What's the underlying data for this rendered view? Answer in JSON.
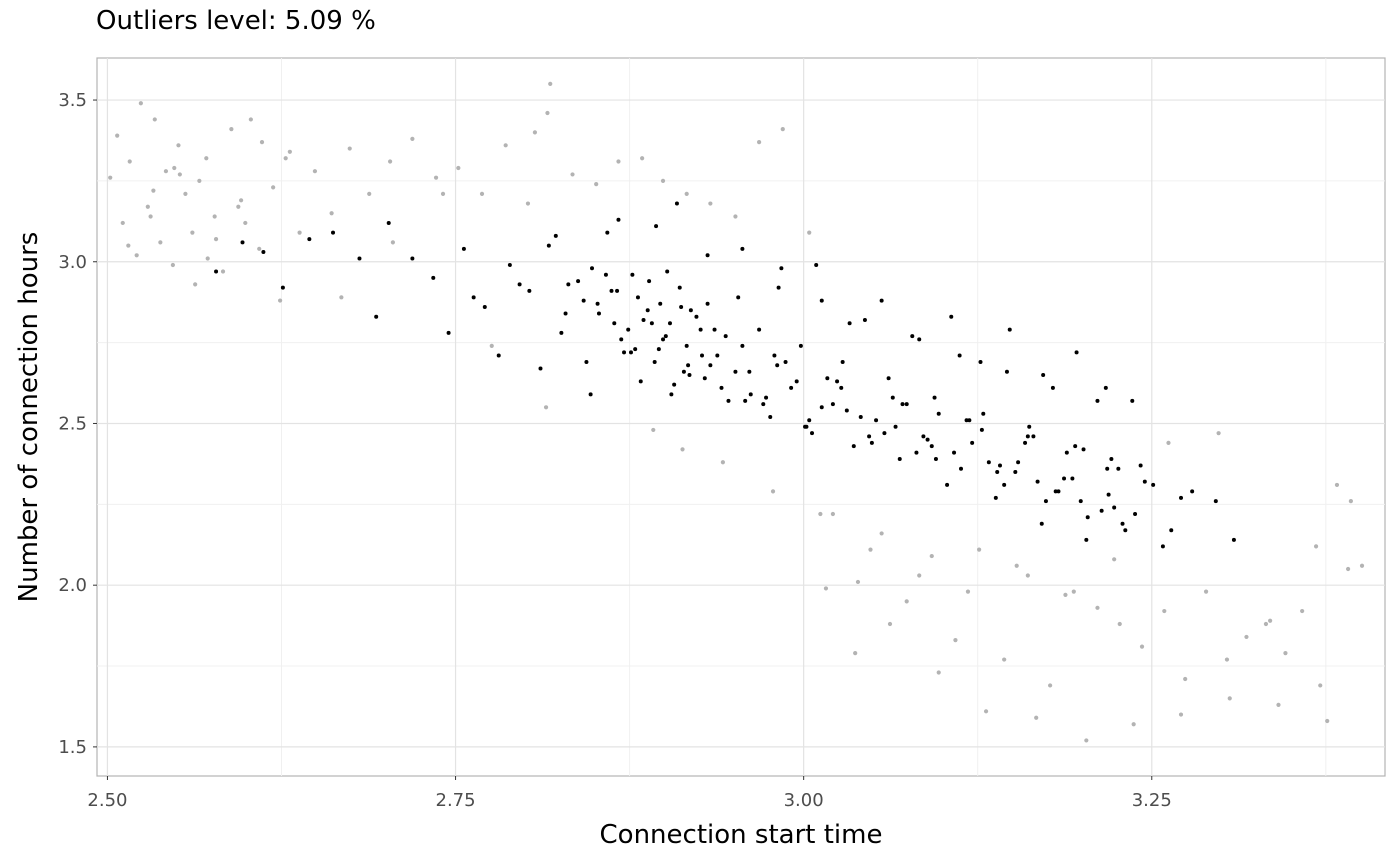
{
  "chart_data": {
    "type": "scatter",
    "title": "Outliers level: 5.09 %",
    "xlabel": "Connection start time",
    "ylabel": "Number of connection hours",
    "xlim": [
      2.4925,
      3.4175
    ],
    "ylim": [
      1.41,
      3.63
    ],
    "xticks": [
      2.5,
      2.75,
      3.0,
      3.25
    ],
    "xtick_labels": [
      "2.50",
      "2.75",
      "3.00",
      "3.25"
    ],
    "yticks": [
      1.5,
      2.0,
      2.5,
      3.0,
      3.5
    ],
    "ytick_labels": [
      "1.5",
      "2.0",
      "2.5",
      "3.0",
      "3.5"
    ],
    "grid": true,
    "legend": "none",
    "series": [
      {
        "color": "#000000",
        "x": [
          2.578,
          2.612,
          2.645,
          2.681,
          2.702,
          2.734,
          2.756,
          2.771,
          2.789,
          2.803,
          2.817,
          2.826,
          2.838,
          2.844,
          2.852,
          2.859,
          2.864,
          2.871,
          2.877,
          2.883,
          2.888,
          2.894,
          2.899,
          2.905,
          2.911,
          2.917,
          2.923,
          2.931,
          2.938,
          2.946,
          2.953,
          2.961,
          2.968,
          2.976,
          2.984,
          2.991,
          2.998,
          3.006,
          3.013,
          3.021,
          3.028,
          3.036,
          3.044,
          3.052,
          3.061,
          3.069,
          3.078,
          3.086,
          3.094,
          3.103,
          3.112,
          3.121,
          3.129,
          3.138,
          3.146,
          3.154,
          3.162,
          3.171,
          3.179,
          3.187,
          3.195,
          3.203,
          3.211,
          3.219,
          3.226,
          3.238,
          3.251,
          3.264,
          3.279,
          3.296,
          3.309,
          2.597,
          2.626,
          2.662,
          2.693,
          2.719,
          2.745,
          2.763,
          2.781,
          2.796,
          2.811,
          2.829,
          2.847,
          2.862,
          2.879,
          2.891,
          2.902,
          2.914,
          2.926,
          2.941,
          2.956,
          2.971,
          2.987,
          3.002,
          3.017,
          3.031,
          3.047,
          3.064,
          3.081,
          3.097,
          3.113,
          3.128,
          3.144,
          3.159,
          3.174,
          3.189,
          3.204,
          3.218,
          3.231,
          3.245,
          3.258,
          3.271,
          2.885,
          2.901,
          2.912,
          2.874,
          2.866,
          2.896,
          2.919,
          2.933,
          2.858,
          2.842,
          2.907,
          2.927,
          2.951,
          2.973,
          2.995,
          3.013,
          3.041,
          3.066,
          3.089,
          3.108,
          3.133,
          3.152,
          3.168,
          3.183,
          3.199,
          3.214,
          3.229,
          2.853,
          2.869,
          2.881,
          2.893,
          2.904,
          2.916,
          2.929,
          2.944,
          2.962,
          2.981,
          3.004,
          3.027,
          3.058,
          3.074,
          3.092,
          3.117,
          3.141,
          3.165,
          3.193,
          3.221,
          2.876,
          2.897,
          2.918,
          2.936,
          2.958,
          2.979,
          3.001,
          3.024,
          3.049,
          3.071,
          3.095,
          3.119,
          3.139,
          3.161,
          3.181,
          3.201,
          3.223,
          3.242,
          2.831,
          2.822,
          2.848,
          2.867,
          2.889,
          2.909,
          2.931,
          2.956,
          2.982,
          3.009,
          3.033,
          3.056,
          3.083,
          3.106,
          3.127,
          3.148,
          3.172,
          3.196,
          3.217,
          3.236
        ],
        "y": [
          2.97,
          3.03,
          3.07,
          3.01,
          3.12,
          2.95,
          3.04,
          2.86,
          2.99,
          2.91,
          3.05,
          2.78,
          2.94,
          2.69,
          2.87,
          3.09,
          2.81,
          2.72,
          2.96,
          2.63,
          2.85,
          3.11,
          2.76,
          2.59,
          2.92,
          2.68,
          2.83,
          3.02,
          2.71,
          2.57,
          2.89,
          2.66,
          2.79,
          2.52,
          2.98,
          2.61,
          2.74,
          2.47,
          2.88,
          2.56,
          2.69,
          2.43,
          2.82,
          2.51,
          2.64,
          2.39,
          2.77,
          2.46,
          2.58,
          2.31,
          2.71,
          2.44,
          2.53,
          2.27,
          2.66,
          2.38,
          2.49,
          2.19,
          2.61,
          2.33,
          2.43,
          2.14,
          2.57,
          2.28,
          2.36,
          2.22,
          2.31,
          2.17,
          2.29,
          2.26,
          2.14,
          3.06,
          2.92,
          3.09,
          2.83,
          3.01,
          2.78,
          2.89,
          2.71,
          2.93,
          2.67,
          2.84,
          2.59,
          2.91,
          2.73,
          2.81,
          2.97,
          2.66,
          2.79,
          2.61,
          2.74,
          2.56,
          2.69,
          2.49,
          2.64,
          2.54,
          2.46,
          2.58,
          2.41,
          2.53,
          2.36,
          2.48,
          2.31,
          2.44,
          2.26,
          2.41,
          2.21,
          2.36,
          2.17,
          2.32,
          2.12,
          2.27,
          2.82,
          2.77,
          2.86,
          2.79,
          2.91,
          2.73,
          2.85,
          2.68,
          2.96,
          2.88,
          2.62,
          2.71,
          2.66,
          2.58,
          2.63,
          2.55,
          2.52,
          2.49,
          2.45,
          2.41,
          2.38,
          2.35,
          2.32,
          2.29,
          2.26,
          2.23,
          2.19,
          2.84,
          2.76,
          2.89,
          2.69,
          2.81,
          2.74,
          2.64,
          2.77,
          2.59,
          2.68,
          2.51,
          2.61,
          2.47,
          2.56,
          2.43,
          2.51,
          2.37,
          2.46,
          2.33,
          2.39,
          2.72,
          2.87,
          2.65,
          2.79,
          2.57,
          2.71,
          2.49,
          2.63,
          2.44,
          2.56,
          2.39,
          2.51,
          2.35,
          2.46,
          2.29,
          2.42,
          2.24,
          2.37,
          2.93,
          3.08,
          2.98,
          3.13,
          2.94,
          3.18,
          2.87,
          3.04,
          2.92,
          2.99,
          2.81,
          2.88,
          2.76,
          2.83,
          2.69,
          2.79,
          2.65,
          2.72,
          2.61,
          2.57
        ]
      },
      {
        "color": "#b3b3b3",
        "x": [
          2.502,
          2.507,
          2.511,
          2.516,
          2.521,
          2.524,
          2.529,
          2.534,
          2.538,
          2.542,
          2.547,
          2.551,
          2.556,
          2.561,
          2.566,
          2.571,
          2.577,
          2.583,
          2.589,
          2.596,
          2.603,
          2.611,
          2.619,
          2.628,
          2.638,
          2.649,
          2.661,
          2.674,
          2.688,
          2.703,
          2.719,
          2.736,
          2.752,
          2.769,
          2.786,
          2.802,
          2.818,
          2.834,
          2.851,
          2.867,
          2.884,
          2.899,
          2.916,
          2.933,
          2.951,
          2.968,
          2.985,
          3.004,
          3.021,
          3.039,
          3.056,
          3.074,
          3.092,
          3.109,
          3.126,
          3.144,
          3.161,
          3.177,
          3.194,
          3.211,
          3.227,
          3.243,
          3.259,
          3.274,
          3.289,
          3.304,
          3.318,
          3.332,
          3.346,
          3.358,
          3.371,
          3.383,
          3.393,
          3.401,
          2.515,
          2.531,
          2.548,
          2.563,
          2.578,
          2.594,
          2.609,
          2.624,
          2.807,
          2.816,
          2.892,
          2.913,
          2.942,
          2.978,
          3.012,
          3.048,
          3.083,
          3.118,
          3.153,
          3.188,
          3.223,
          3.262,
          3.298,
          3.335,
          3.368,
          3.391,
          2.533,
          2.552,
          2.572,
          2.599,
          2.631,
          2.668,
          2.705,
          2.741,
          2.776,
          2.815,
          3.016,
          3.037,
          3.062,
          3.097,
          3.131,
          3.167,
          3.203,
          3.237,
          3.271,
          3.306,
          3.341,
          3.376
        ],
        "y": [
          3.26,
          3.39,
          3.12,
          3.31,
          3.02,
          3.49,
          3.17,
          3.44,
          3.06,
          3.28,
          2.99,
          3.36,
          3.21,
          3.09,
          3.25,
          3.32,
          3.14,
          2.97,
          3.41,
          3.19,
          3.44,
          3.37,
          3.23,
          3.32,
          3.09,
          3.28,
          3.15,
          3.35,
          3.21,
          3.31,
          3.38,
          3.26,
          3.29,
          3.21,
          3.36,
          3.18,
          3.55,
          3.27,
          3.24,
          3.31,
          3.32,
          3.25,
          3.21,
          3.18,
          3.14,
          3.37,
          3.41,
          3.09,
          2.22,
          2.01,
          2.16,
          1.95,
          2.09,
          1.83,
          2.11,
          1.77,
          2.03,
          1.69,
          1.98,
          1.93,
          1.88,
          1.81,
          1.92,
          1.71,
          1.98,
          1.77,
          1.84,
          1.88,
          1.79,
          1.92,
          1.69,
          2.31,
          2.26,
          2.06,
          3.05,
          3.14,
          3.29,
          2.93,
          3.07,
          3.17,
          3.04,
          2.88,
          3.4,
          3.46,
          2.48,
          2.42,
          2.38,
          2.29,
          2.22,
          2.11,
          2.03,
          1.98,
          2.06,
          1.97,
          2.08,
          2.44,
          2.47,
          1.89,
          2.12,
          2.05,
          3.22,
          3.27,
          3.01,
          3.12,
          3.34,
          2.89,
          3.06,
          3.21,
          2.74,
          2.55,
          1.99,
          1.79,
          1.88,
          1.73,
          1.61,
          1.59,
          1.52,
          1.57,
          1.6,
          1.65,
          1.63,
          1.58
        ]
      }
    ]
  }
}
